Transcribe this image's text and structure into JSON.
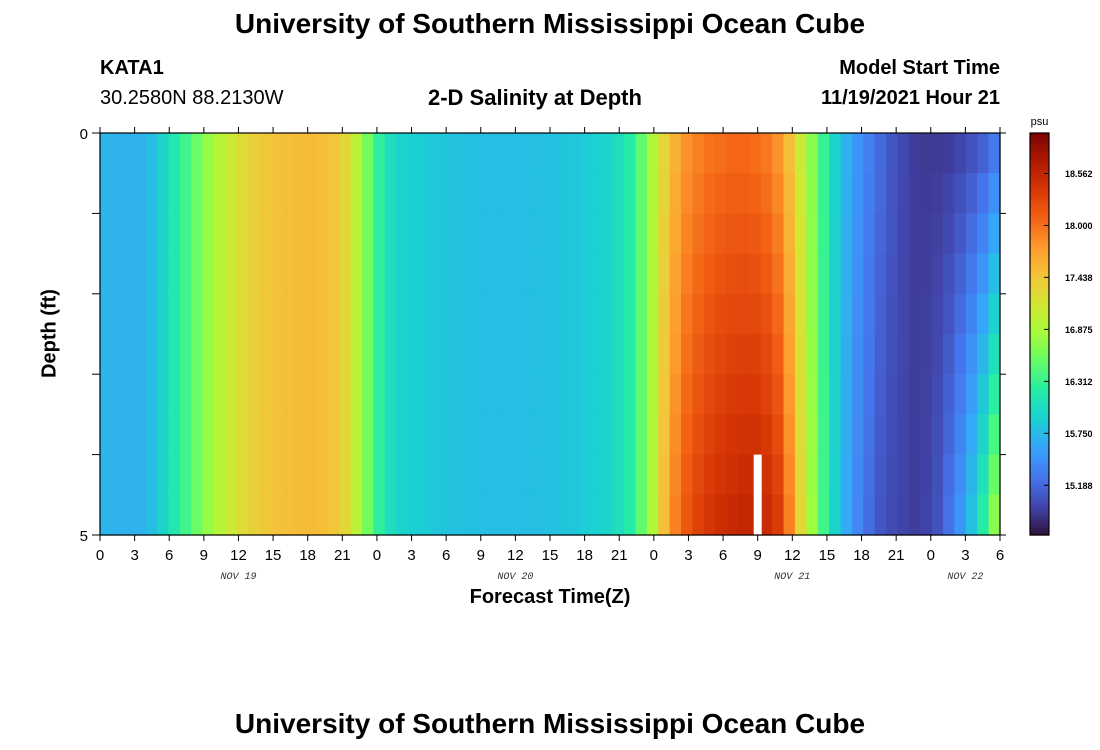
{
  "page": {
    "title_top": "University of Southern Mississippi Ocean Cube",
    "title_bottom": "University of Southern Mississippi Ocean Cube",
    "station": "KATA1",
    "coords": "30.2580N  88.2130W",
    "subtitle": "2-D Salinity at Depth",
    "model_label": "Model Start Time",
    "model_time": "11/19/2021 Hour 21"
  },
  "chart_data": {
    "type": "heatmap",
    "title": "2-D Salinity at Depth",
    "xlabel": "Forecast Time(Z)",
    "ylabel": "Depth (ft)",
    "x_start_hour": 0,
    "x_end_hour": 78,
    "x_step_hours": 1,
    "y_range": [
      0,
      5
    ],
    "y_ticks": [
      "0",
      "5"
    ],
    "x_tick_labels": [
      "0",
      "3",
      "6",
      "9",
      "12",
      "15",
      "18",
      "21",
      "0",
      "3",
      "6",
      "9",
      "12",
      "15",
      "18",
      "21",
      "0",
      "3",
      "6",
      "9",
      "12",
      "15",
      "18",
      "21",
      "0",
      "3",
      "6"
    ],
    "date_labels": [
      {
        "label": "NOV 19",
        "hour": 12
      },
      {
        "label": "NOV 20",
        "hour": 36
      },
      {
        "label": "NOV 21",
        "hour": 60
      },
      {
        "label": "NOV 22",
        "hour": 75
      }
    ],
    "colorbar": {
      "unit": "psu",
      "min": 14.65,
      "max": 19.0,
      "ticks": [
        "18.562",
        "18.000",
        "17.438",
        "16.875",
        "16.312",
        "15.750",
        "15.188"
      ],
      "colors": [
        "#30123b",
        "#4145ab",
        "#4675ed",
        "#39a2fc",
        "#1bcfd4",
        "#24eca6",
        "#61fc6c",
        "#a4fc3b",
        "#d1e834",
        "#f3c63a",
        "#fe9b2d",
        "#f36315",
        "#d93806",
        "#b11901",
        "#7a0403"
      ]
    },
    "salinity_profile_surface": [
      15.72,
      15.7,
      15.68,
      15.7,
      15.78,
      15.95,
      16.15,
      16.35,
      16.55,
      16.75,
      16.95,
      17.1,
      17.25,
      17.35,
      17.42,
      17.47,
      17.5,
      17.52,
      17.52,
      17.5,
      17.45,
      17.3,
      17.0,
      16.6,
      16.25,
      16.05,
      15.95,
      15.9,
      15.87,
      15.84,
      15.82,
      15.8,
      15.79,
      15.78,
      15.78,
      15.78,
      15.78,
      15.78,
      15.79,
      15.8,
      15.82,
      15.84,
      15.87,
      15.91,
      15.96,
      16.05,
      16.2,
      16.5,
      16.9,
      17.3,
      17.6,
      17.8,
      17.9,
      17.98,
      18.02,
      18.05,
      18.05,
      18.02,
      17.95,
      17.8,
      17.5,
      17.1,
      16.7,
      16.3,
      15.95,
      15.7,
      15.5,
      15.35,
      15.2,
      15.08,
      14.98,
      14.92,
      14.9,
      14.9,
      14.92,
      14.97,
      15.05,
      15.15,
      15.3
    ],
    "salinity_profile_bottom": [
      15.72,
      15.7,
      15.68,
      15.7,
      15.78,
      15.95,
      16.15,
      16.35,
      16.55,
      16.75,
      16.95,
      17.1,
      17.25,
      17.35,
      17.42,
      17.47,
      17.5,
      17.52,
      17.52,
      17.5,
      17.45,
      17.3,
      17.0,
      16.6,
      16.25,
      16.05,
      15.95,
      15.9,
      15.87,
      15.84,
      15.82,
      15.8,
      15.79,
      15.78,
      15.78,
      15.78,
      15.78,
      15.78,
      15.79,
      15.8,
      15.82,
      15.84,
      15.87,
      15.91,
      15.96,
      16.05,
      16.2,
      16.5,
      16.9,
      17.5,
      17.9,
      18.15,
      18.3,
      18.4,
      18.48,
      18.52,
      18.55,
      18.56,
      18.5,
      18.35,
      17.9,
      17.3,
      16.8,
      16.35,
      15.95,
      15.65,
      15.4,
      15.22,
      15.08,
      15.0,
      14.95,
      14.92,
      14.95,
      15.05,
      15.25,
      15.5,
      15.8,
      16.2,
      16.7
    ],
    "missing_cell": {
      "hour": 57,
      "depth_from": 4.0,
      "depth_to": 5
    }
  }
}
